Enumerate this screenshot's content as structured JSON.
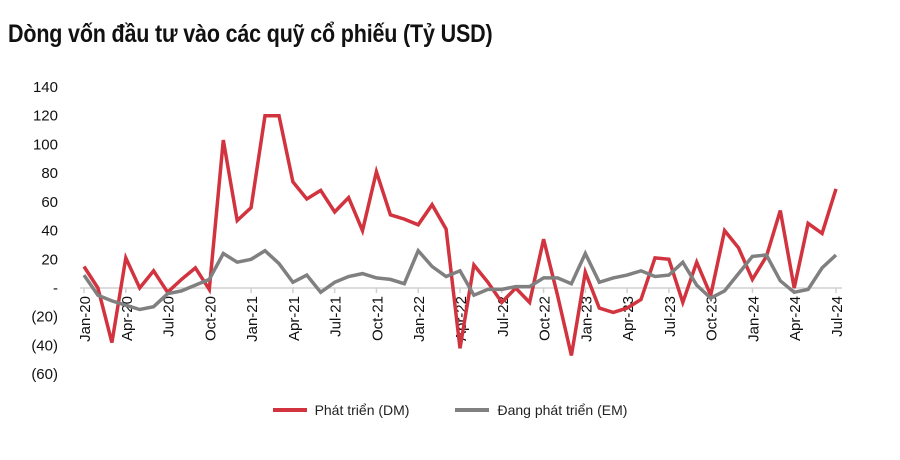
{
  "chart_data": {
    "type": "line",
    "title": "Dòng vốn đầu tư vào các quỹ cổ phiếu (Tỷ USD)",
    "xlabel": "",
    "ylabel": "",
    "ylim": [
      -60,
      140
    ],
    "yticks": [
      140,
      120,
      100,
      80,
      60,
      40,
      20,
      0,
      -20,
      -40,
      -60
    ],
    "ytick_labels": [
      "140",
      "120",
      "100",
      "80",
      "60",
      "40",
      "20",
      "-",
      "(20)",
      "(40)",
      "(60)"
    ],
    "x": [
      "Jan-20",
      "Feb-20",
      "Mar-20",
      "Apr-20",
      "May-20",
      "Jun-20",
      "Jul-20",
      "Aug-20",
      "Sep-20",
      "Oct-20",
      "Nov-20",
      "Dec-20",
      "Jan-21",
      "Feb-21",
      "Mar-21",
      "Apr-21",
      "May-21",
      "Jun-21",
      "Jul-21",
      "Aug-21",
      "Sep-21",
      "Oct-21",
      "Nov-21",
      "Dec-21",
      "Jan-22",
      "Feb-22",
      "Mar-22",
      "Apr-22",
      "May-22",
      "Jun-22",
      "Jul-22",
      "Aug-22",
      "Sep-22",
      "Oct-22",
      "Nov-22",
      "Dec-22",
      "Jan-23",
      "Feb-23",
      "Mar-23",
      "Apr-23",
      "May-23",
      "Jun-23",
      "Jul-23",
      "Aug-23",
      "Sep-23",
      "Oct-23",
      "Nov-23",
      "Dec-23",
      "Jan-24",
      "Feb-24",
      "Mar-24",
      "Apr-24",
      "May-24",
      "Jun-24",
      "Jul-24"
    ],
    "xtick_labels": [
      "Jan-20",
      "Apr-20",
      "Jul-20",
      "Oct-20",
      "Jan-21",
      "Apr-21",
      "Jul-21",
      "Oct-21",
      "Jan-22",
      "Apr-22",
      "Jul-22",
      "Oct-22",
      "Jan-23",
      "Apr-23",
      "Jul-23",
      "Oct-23",
      "Jan-24",
      "Apr-24",
      "Jul-24"
    ],
    "grid": false,
    "legend_position": "bottom",
    "series": [
      {
        "name": "Phát triển (DM)",
        "color": "#d2343f",
        "values": [
          15,
          0,
          -38,
          21,
          0,
          12,
          -3,
          6,
          14,
          -1,
          103,
          47,
          56,
          120,
          120,
          74,
          62,
          68,
          53,
          63,
          40,
          81,
          51,
          48,
          44,
          58,
          41,
          -42,
          16,
          4,
          -10,
          0,
          -10,
          34,
          -5,
          -47,
          11,
          -14,
          -17,
          -14,
          -8,
          21,
          20,
          -10,
          18,
          -5,
          40,
          28,
          6,
          22,
          54,
          0,
          45,
          38,
          69
        ]
      },
      {
        "name": "Đang phát triển (EM)",
        "color": "#808080",
        "values": [
          9,
          -5,
          -9,
          -12,
          -15,
          -13,
          -4,
          -2,
          2,
          6,
          24,
          18,
          20,
          26,
          17,
          4,
          9,
          -3,
          4,
          8,
          10,
          7,
          6,
          3,
          26,
          15,
          8,
          12,
          -5,
          -1,
          -1,
          1,
          1,
          7,
          7,
          3,
          24,
          4,
          7,
          9,
          12,
          8,
          9,
          18,
          2,
          -7,
          -2,
          10,
          22,
          23,
          5,
          -3,
          -1,
          14,
          23
        ]
      }
    ]
  }
}
